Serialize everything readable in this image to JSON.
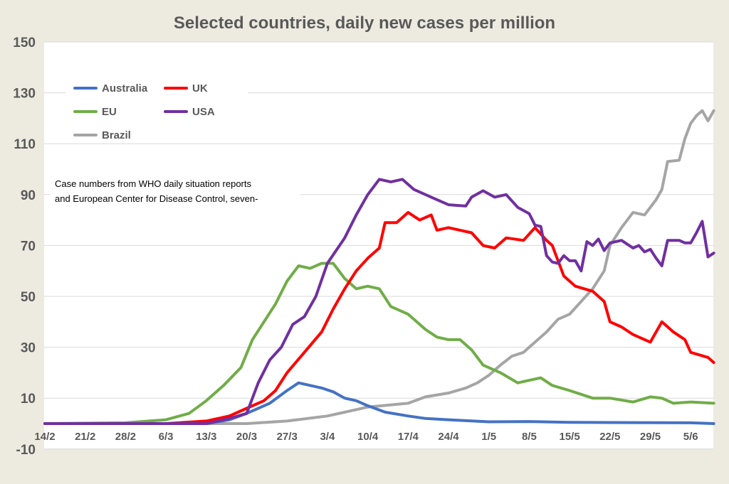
{
  "chart_data": {
    "type": "line",
    "title": "Selected countries, daily new cases per million",
    "xlabel": "",
    "ylabel": "",
    "ylim": [
      -10,
      150
    ],
    "yticks": [
      "150",
      "130",
      "110",
      "90",
      "70",
      "50",
      "30",
      "10",
      "-10"
    ],
    "xticks": [
      "14/2",
      "21/2",
      "28/2",
      "6/3",
      "13/3",
      "20/3",
      "27/3",
      "3/4",
      "10/4",
      "17/4",
      "24/4",
      "1/5",
      "8/5",
      "15/5",
      "22/5",
      "29/5",
      "5/6"
    ],
    "grid": "horizontal",
    "legend_position": "top-left",
    "annotation": [
      "Case numbers from WHO daily situation reports",
      "and European Center for Disease Control, seven-"
    ],
    "series": [
      {
        "name": "Australia",
        "color": "#4472C4",
        "points": [
          [
            "14/2",
            0
          ],
          [
            "13/3",
            0
          ],
          [
            "17/3",
            1.5
          ],
          [
            "20/3",
            4
          ],
          [
            "24/3",
            8
          ],
          [
            "27/3",
            13
          ],
          [
            "29/3",
            16
          ],
          [
            "31/3",
            15
          ],
          [
            "2/4",
            14
          ],
          [
            "4/4",
            12.5
          ],
          [
            "6/4",
            10
          ],
          [
            "8/4",
            9
          ],
          [
            "10/4",
            7
          ],
          [
            "13/4",
            4.5
          ],
          [
            "17/4",
            3
          ],
          [
            "20/4",
            2
          ],
          [
            "24/4",
            1.5
          ],
          [
            "1/5",
            0.7
          ],
          [
            "8/5",
            0.8
          ],
          [
            "15/5",
            0.5
          ],
          [
            "5/6",
            0.3
          ],
          [
            "9/6",
            0
          ]
        ]
      },
      {
        "name": "UK",
        "color": "#FF0000",
        "points": [
          [
            "14/2",
            0
          ],
          [
            "6/3",
            0
          ],
          [
            "13/3",
            1
          ],
          [
            "17/3",
            3
          ],
          [
            "20/3",
            6
          ],
          [
            "23/3",
            9
          ],
          [
            "25/3",
            13
          ],
          [
            "27/3",
            20
          ],
          [
            "30/3",
            28
          ],
          [
            "2/4",
            36
          ],
          [
            "4/4",
            45
          ],
          [
            "6/4",
            53
          ],
          [
            "8/4",
            60
          ],
          [
            "10/4",
            65
          ],
          [
            "12/4",
            69
          ],
          [
            "13/4",
            79
          ],
          [
            "15/4",
            79
          ],
          [
            "17/4",
            83
          ],
          [
            "19/4",
            80
          ],
          [
            "21/4",
            82
          ],
          [
            "22/4",
            76
          ],
          [
            "24/4",
            77
          ],
          [
            "26/4",
            76
          ],
          [
            "28/4",
            75
          ],
          [
            "30/4",
            70
          ],
          [
            "2/5",
            69
          ],
          [
            "4/5",
            73
          ],
          [
            "7/5",
            72
          ],
          [
            "9/5",
            77
          ],
          [
            "11/5",
            72
          ],
          [
            "12/5",
            70
          ],
          [
            "13/5",
            64
          ],
          [
            "14/5",
            58
          ],
          [
            "16/5",
            54
          ],
          [
            "19/5",
            52
          ],
          [
            "21/5",
            48
          ],
          [
            "22/5",
            40
          ],
          [
            "24/5",
            38
          ],
          [
            "26/5",
            35
          ],
          [
            "29/5",
            32
          ],
          [
            "31/5",
            40
          ],
          [
            "2/6",
            36
          ],
          [
            "4/6",
            33
          ],
          [
            "5/6",
            28
          ],
          [
            "8/6",
            26
          ],
          [
            "9/6",
            24
          ]
        ]
      },
      {
        "name": "EU",
        "color": "#70AD47",
        "points": [
          [
            "14/2",
            0
          ],
          [
            "28/2",
            0.3
          ],
          [
            "6/3",
            1.5
          ],
          [
            "10/3",
            4
          ],
          [
            "13/3",
            9
          ],
          [
            "16/3",
            15
          ],
          [
            "19/3",
            22
          ],
          [
            "21/3",
            33
          ],
          [
            "23/3",
            40
          ],
          [
            "25/3",
            47
          ],
          [
            "27/3",
            56
          ],
          [
            "29/3",
            62
          ],
          [
            "31/3",
            61
          ],
          [
            "2/4",
            63
          ],
          [
            "4/4",
            63
          ],
          [
            "6/4",
            57
          ],
          [
            "8/4",
            53
          ],
          [
            "10/4",
            54
          ],
          [
            "12/4",
            53
          ],
          [
            "14/4",
            46
          ],
          [
            "17/4",
            43
          ],
          [
            "20/4",
            37
          ],
          [
            "22/4",
            34
          ],
          [
            "24/4",
            33
          ],
          [
            "26/4",
            33
          ],
          [
            "28/4",
            29
          ],
          [
            "30/4",
            23
          ],
          [
            "3/5",
            20
          ],
          [
            "6/5",
            16
          ],
          [
            "8/5",
            17
          ],
          [
            "10/5",
            18
          ],
          [
            "12/5",
            15
          ],
          [
            "15/5",
            13
          ],
          [
            "19/5",
            10
          ],
          [
            "22/5",
            10
          ],
          [
            "26/5",
            8.5
          ],
          [
            "29/5",
            10.5
          ],
          [
            "31/5",
            10
          ],
          [
            "2/6",
            8
          ],
          [
            "5/6",
            8.5
          ],
          [
            "9/6",
            8
          ]
        ]
      },
      {
        "name": "USA",
        "color": "#7030A0",
        "points": [
          [
            "14/2",
            0
          ],
          [
            "13/3",
            0
          ],
          [
            "17/3",
            2
          ],
          [
            "20/3",
            4
          ],
          [
            "22/3",
            16
          ],
          [
            "24/3",
            25
          ],
          [
            "26/3",
            30
          ],
          [
            "28/3",
            39
          ],
          [
            "30/3",
            42
          ],
          [
            "1/4",
            50
          ],
          [
            "3/4",
            63
          ],
          [
            "6/4",
            73
          ],
          [
            "8/4",
            82
          ],
          [
            "10/4",
            90
          ],
          [
            "11/4",
            93
          ],
          [
            "12/4",
            96
          ],
          [
            "14/4",
            95
          ],
          [
            "16/4",
            96
          ],
          [
            "18/4",
            92
          ],
          [
            "21/4",
            89
          ],
          [
            "24/4",
            86
          ],
          [
            "27/4",
            85.5
          ],
          [
            "28/4",
            89
          ],
          [
            "30/4",
            91.5
          ],
          [
            "2/5",
            89
          ],
          [
            "4/5",
            90
          ],
          [
            "6/5",
            85
          ],
          [
            "8/5",
            82.5
          ],
          [
            "9/5",
            78
          ],
          [
            "10/5",
            77.5
          ],
          [
            "11/5",
            66
          ],
          [
            "12/5",
            63.5
          ],
          [
            "13/5",
            63
          ],
          [
            "14/5",
            66
          ],
          [
            "15/5",
            64
          ],
          [
            "16/5",
            64
          ],
          [
            "17/5",
            60
          ],
          [
            "18/5",
            71.5
          ],
          [
            "19/5",
            70
          ],
          [
            "20/5",
            72.5
          ],
          [
            "21/5",
            68
          ],
          [
            "22/5",
            71
          ],
          [
            "24/5",
            72
          ],
          [
            "26/5",
            69
          ],
          [
            "27/5",
            70
          ],
          [
            "28/5",
            67.5
          ],
          [
            "29/5",
            68.5
          ],
          [
            "30/5",
            65
          ],
          [
            "31/5",
            62
          ],
          [
            "1/6",
            72
          ],
          [
            "3/6",
            72
          ],
          [
            "4/6",
            71
          ],
          [
            "5/6",
            71
          ],
          [
            "6/6",
            75
          ],
          [
            "7/6",
            79.5
          ],
          [
            "8/6",
            65.5
          ],
          [
            "9/6",
            67
          ]
        ]
      },
      {
        "name": "Brazil",
        "color": "#A5A5A5",
        "points": [
          [
            "14/2",
            0
          ],
          [
            "20/3",
            0
          ],
          [
            "27/3",
            1
          ],
          [
            "3/4",
            3
          ],
          [
            "10/4",
            6.5
          ],
          [
            "17/4",
            8
          ],
          [
            "20/4",
            10.5
          ],
          [
            "24/4",
            12
          ],
          [
            "27/4",
            14
          ],
          [
            "29/4",
            16
          ],
          [
            "1/5",
            19
          ],
          [
            "3/5",
            23
          ],
          [
            "5/5",
            26.5
          ],
          [
            "7/5",
            28
          ],
          [
            "9/5",
            32
          ],
          [
            "11/5",
            36
          ],
          [
            "13/5",
            41
          ],
          [
            "15/5",
            43
          ],
          [
            "17/5",
            48
          ],
          [
            "19/5",
            53
          ],
          [
            "21/5",
            60
          ],
          [
            "22/5",
            70
          ],
          [
            "24/5",
            77
          ],
          [
            "26/5",
            83
          ],
          [
            "28/5",
            82
          ],
          [
            "30/5",
            88
          ],
          [
            "31/5",
            92
          ],
          [
            "1/6",
            103
          ],
          [
            "3/6",
            103.5
          ],
          [
            "4/6",
            112
          ],
          [
            "5/6",
            118
          ],
          [
            "6/6",
            121
          ],
          [
            "7/6",
            123
          ],
          [
            "8/6",
            119
          ],
          [
            "9/6",
            123
          ]
        ]
      }
    ]
  }
}
